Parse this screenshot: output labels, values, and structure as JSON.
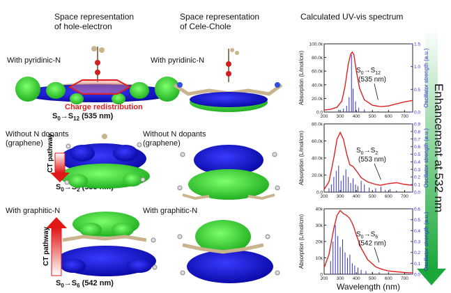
{
  "columns": {
    "hole_electron": {
      "line1": "Space representation",
      "line2": "of hole-electron"
    },
    "cele_chole": {
      "line1": "Space representation",
      "line2": "of Cele-Chole"
    },
    "uv_vis": {
      "title": "Calculated UV-vis spectrum"
    }
  },
  "rows": [
    {
      "label": "With pyridinic-N",
      "label2": "",
      "transition_sub": "12",
      "transition_nm": "(535 nm)"
    },
    {
      "label": "Without N dopants",
      "label2": "(graphene)",
      "transition_sub": "2",
      "transition_nm": "(553 nm)"
    },
    {
      "label": "With graphitic-N",
      "label2": "",
      "transition_sub": "6",
      "transition_nm": "(542 nm)"
    }
  ],
  "annotations": {
    "charge_redistribution": "Charge redistribution",
    "ct_pathway": "CT pathway",
    "enhancement": "Enhancement at 532 nm",
    "s0": "S",
    "sub0": "0"
  },
  "colors": {
    "electron": "#2a2adf",
    "hole": "#3ad43a",
    "spectrum": "#e02020",
    "oscillator": "#3030d0",
    "arrow_red": "#e02020",
    "arrow_green": "#2aa83a"
  },
  "chart_data": [
    {
      "type": "line",
      "xlabel": "",
      "ylabel": "Absorption (L/mol/cm)",
      "y2label": "Oscillator strength (a.u.)",
      "xlim": [
        200,
        750
      ],
      "ylim": [
        0,
        100000
      ],
      "y2lim": [
        0,
        1.6
      ],
      "yticks": [
        "0.0",
        "20.0k",
        "40.0k",
        "60.0k",
        "80.0k",
        "100.0k"
      ],
      "y2ticks": [
        "0.0",
        "0.5",
        "1.0",
        "1.5"
      ],
      "xticks": [
        "200",
        "300",
        "400",
        "500",
        "600",
        "700"
      ],
      "series": [
        {
          "x": [
            200,
            240,
            280,
            310,
            330,
            350,
            365,
            375,
            385,
            400,
            420,
            450,
            500,
            550,
            600,
            650,
            700,
            750
          ],
          "y": [
            3000,
            4000,
            7000,
            16000,
            38000,
            70000,
            85000,
            88000,
            84000,
            60000,
            35000,
            18000,
            10000,
            8000,
            9000,
            12000,
            15000,
            17000
          ]
        }
      ],
      "sticks": {
        "x": [
          290,
          320,
          340,
          355,
          370,
          380,
          395,
          415,
          450,
          535,
          600
        ],
        "y": [
          0.05,
          0.08,
          0.15,
          0.35,
          1.35,
          0.55,
          0.25,
          0.1,
          0.06,
          0.02,
          0.01
        ]
      },
      "annotation": {
        "sub": "12",
        "nm": "(535 nm)",
        "x": 535
      }
    },
    {
      "type": "line",
      "xlabel": "",
      "ylabel": "Absorption (L/mol/cm)",
      "y2label": "Oscillator strength (a.u.)",
      "xlim": [
        200,
        750
      ],
      "ylim": [
        0,
        80000
      ],
      "y2lim": [
        0,
        0.9
      ],
      "yticks": [
        "0.0",
        "20.0k",
        "40.0k",
        "60.0k",
        "80.0k"
      ],
      "y2ticks": [
        "0.0",
        "0.1",
        "0.2",
        "0.3",
        "0.4",
        "0.5",
        "0.6",
        "0.7",
        "0.8",
        "0.9"
      ],
      "xticks": [
        "200",
        "300",
        "400",
        "500",
        "600",
        "700"
      ],
      "series": [
        {
          "x": [
            200,
            230,
            260,
            280,
            300,
            320,
            340,
            360,
            380,
            400,
            430,
            470,
            520,
            550,
            600,
            650,
            700,
            750
          ],
          "y": [
            3000,
            12000,
            40000,
            62000,
            70000,
            62000,
            45000,
            32000,
            30000,
            25000,
            17000,
            12000,
            9000,
            8000,
            10000,
            11000,
            9000,
            8000
          ]
        }
      ],
      "sticks": {
        "x": [
          230,
          245,
          260,
          275,
          290,
          305,
          320,
          335,
          350,
          365,
          380,
          395,
          410,
          430,
          450,
          480,
          520,
          553,
          580,
          610,
          650,
          700
        ],
        "y": [
          0.05,
          0.1,
          0.2,
          0.28,
          0.35,
          0.15,
          0.22,
          0.3,
          0.2,
          0.12,
          0.18,
          0.1,
          0.08,
          0.15,
          0.1,
          0.06,
          0.05,
          0.07,
          0.03,
          0.04,
          0.02,
          0.02
        ]
      },
      "annotation": {
        "sub": "2",
        "nm": "(553 nm)",
        "x": 553
      }
    },
    {
      "type": "line",
      "xlabel": "Wavelength (nm)",
      "ylabel": "Absorption (L/mol/cm)",
      "y2label": "Oscillator strength (a.u.)",
      "xlim": [
        200,
        750
      ],
      "ylim": [
        0,
        40000
      ],
      "y2lim": [
        0,
        0.6
      ],
      "yticks": [
        "0",
        "10k",
        "20k",
        "30k",
        "40k"
      ],
      "y2ticks": [
        "0.0",
        "0.1",
        "0.2",
        "0.3",
        "0.4",
        "0.5",
        "0.6"
      ],
      "xticks": [
        "200",
        "300",
        "400",
        "500",
        "600",
        "700"
      ],
      "series": [
        {
          "x": [
            200,
            230,
            260,
            280,
            300,
            320,
            340,
            360,
            380,
            400,
            430,
            470,
            520,
            560,
            600,
            650,
            700,
            750
          ],
          "y": [
            4000,
            12000,
            28000,
            36000,
            39000,
            37000,
            36000,
            34000,
            30000,
            24000,
            16000,
            9000,
            4500,
            3000,
            2000,
            1500,
            1000,
            800
          ]
        }
      ],
      "sticks": {
        "x": [
          240,
          255,
          270,
          285,
          300,
          315,
          330,
          345,
          360,
          375,
          390,
          410,
          430,
          460,
          500,
          542
        ],
        "y": [
          0.12,
          0.3,
          0.45,
          0.35,
          0.25,
          0.32,
          0.2,
          0.15,
          0.18,
          0.1,
          0.08,
          0.06,
          0.04,
          0.03,
          0.02,
          0.02
        ]
      },
      "annotation": {
        "sub": "6",
        "nm": "(542 nm)",
        "x": 542
      }
    }
  ]
}
